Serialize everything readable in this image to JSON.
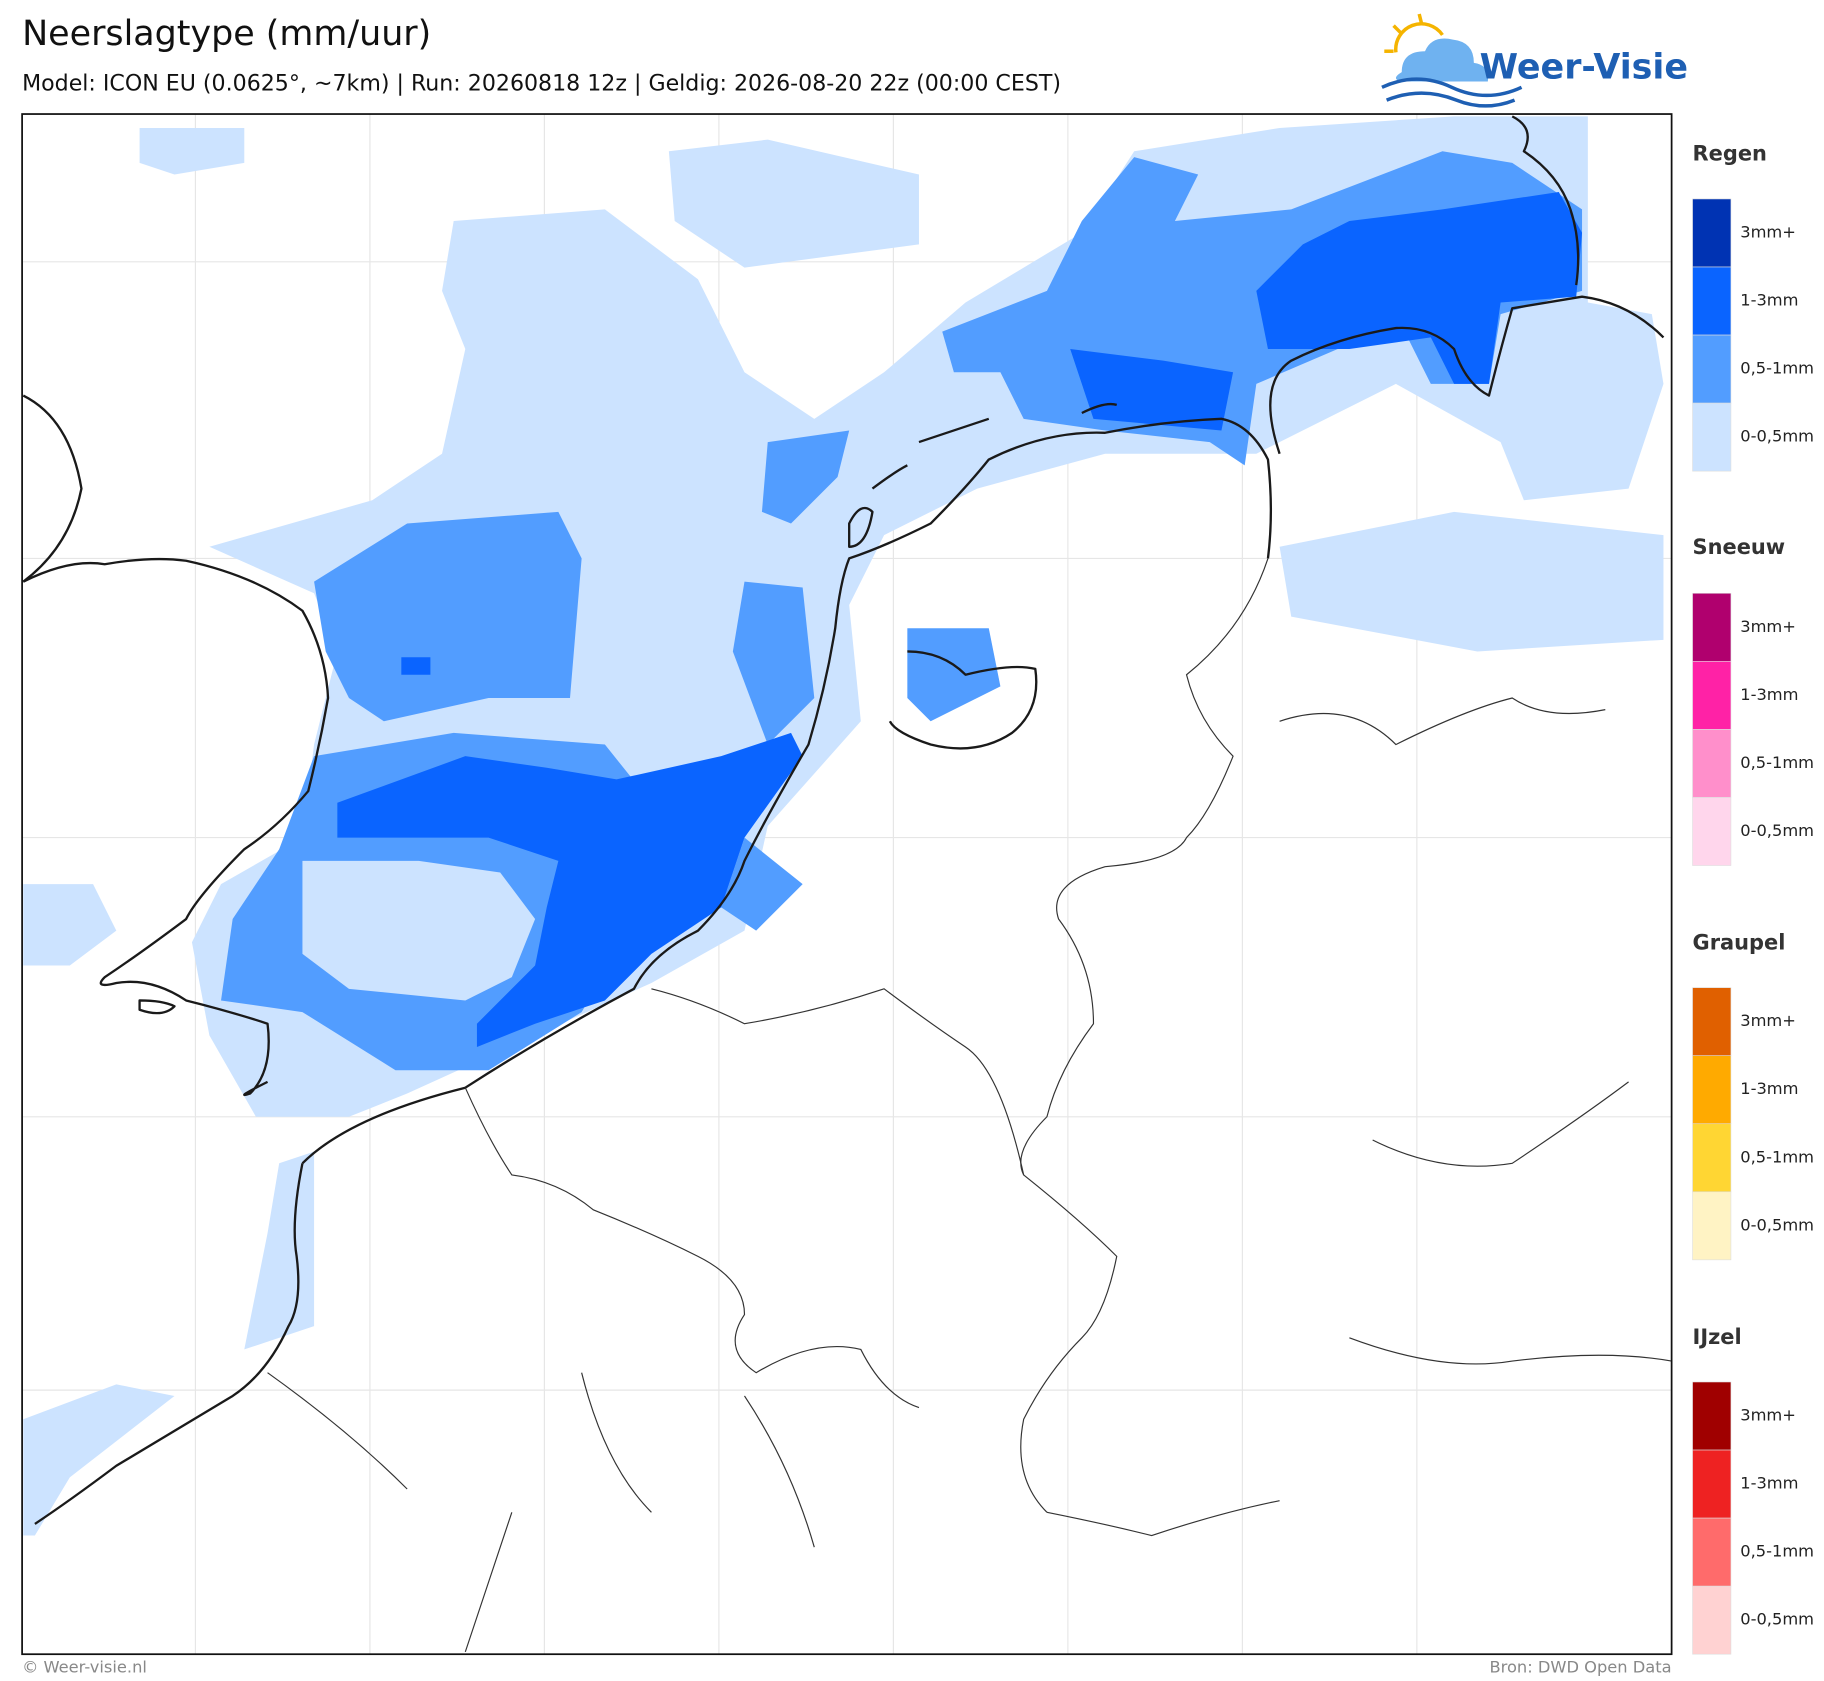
{
  "header": {
    "title": "Neerslagtype (mm/uur)",
    "subtitle": "Model: ICON EU (0.0625°, ~7km)  |  Run: 20260818 12z  |  Geldig: 2026-08-20 22z (00:00 CEST)"
  },
  "logo": {
    "text": "Weer-Visie"
  },
  "legend": [
    {
      "title": "Regen",
      "items": [
        {
          "label": "3mm+",
          "color": "#0033b3"
        },
        {
          "label": "1-3mm",
          "color": "#0a64ff"
        },
        {
          "label": "0,5-1mm",
          "color": "#529dff"
        },
        {
          "label": "0-0,5mm",
          "color": "#cce3ff"
        }
      ]
    },
    {
      "title": "Sneeuw",
      "items": [
        {
          "label": "3mm+",
          "color": "#b0006e"
        },
        {
          "label": "1-3mm",
          "color": "#ff22a6"
        },
        {
          "label": "0,5-1mm",
          "color": "#ff8fcb"
        },
        {
          "label": "0-0,5mm",
          "color": "#ffd6ec"
        }
      ]
    },
    {
      "title": "Graupel",
      "items": [
        {
          "label": "3mm+",
          "color": "#e06000"
        },
        {
          "label": "1-3mm",
          "color": "#ffaa00"
        },
        {
          "label": "0,5-1mm",
          "color": "#ffd633"
        },
        {
          "label": "0-0,5mm",
          "color": "#fff3c4"
        }
      ]
    },
    {
      "title": "IJzel",
      "items": [
        {
          "label": "3mm+",
          "color": "#a00000"
        },
        {
          "label": "1-3mm",
          "color": "#ee2222"
        },
        {
          "label": "0,5-1mm",
          "color": "#ff6b6b"
        },
        {
          "label": "0-0,5mm",
          "color": "#ffd2d2"
        }
      ]
    }
  ],
  "footer": {
    "left": "© Weer-visie.nl",
    "right": "Bron: DWD Open Data"
  }
}
